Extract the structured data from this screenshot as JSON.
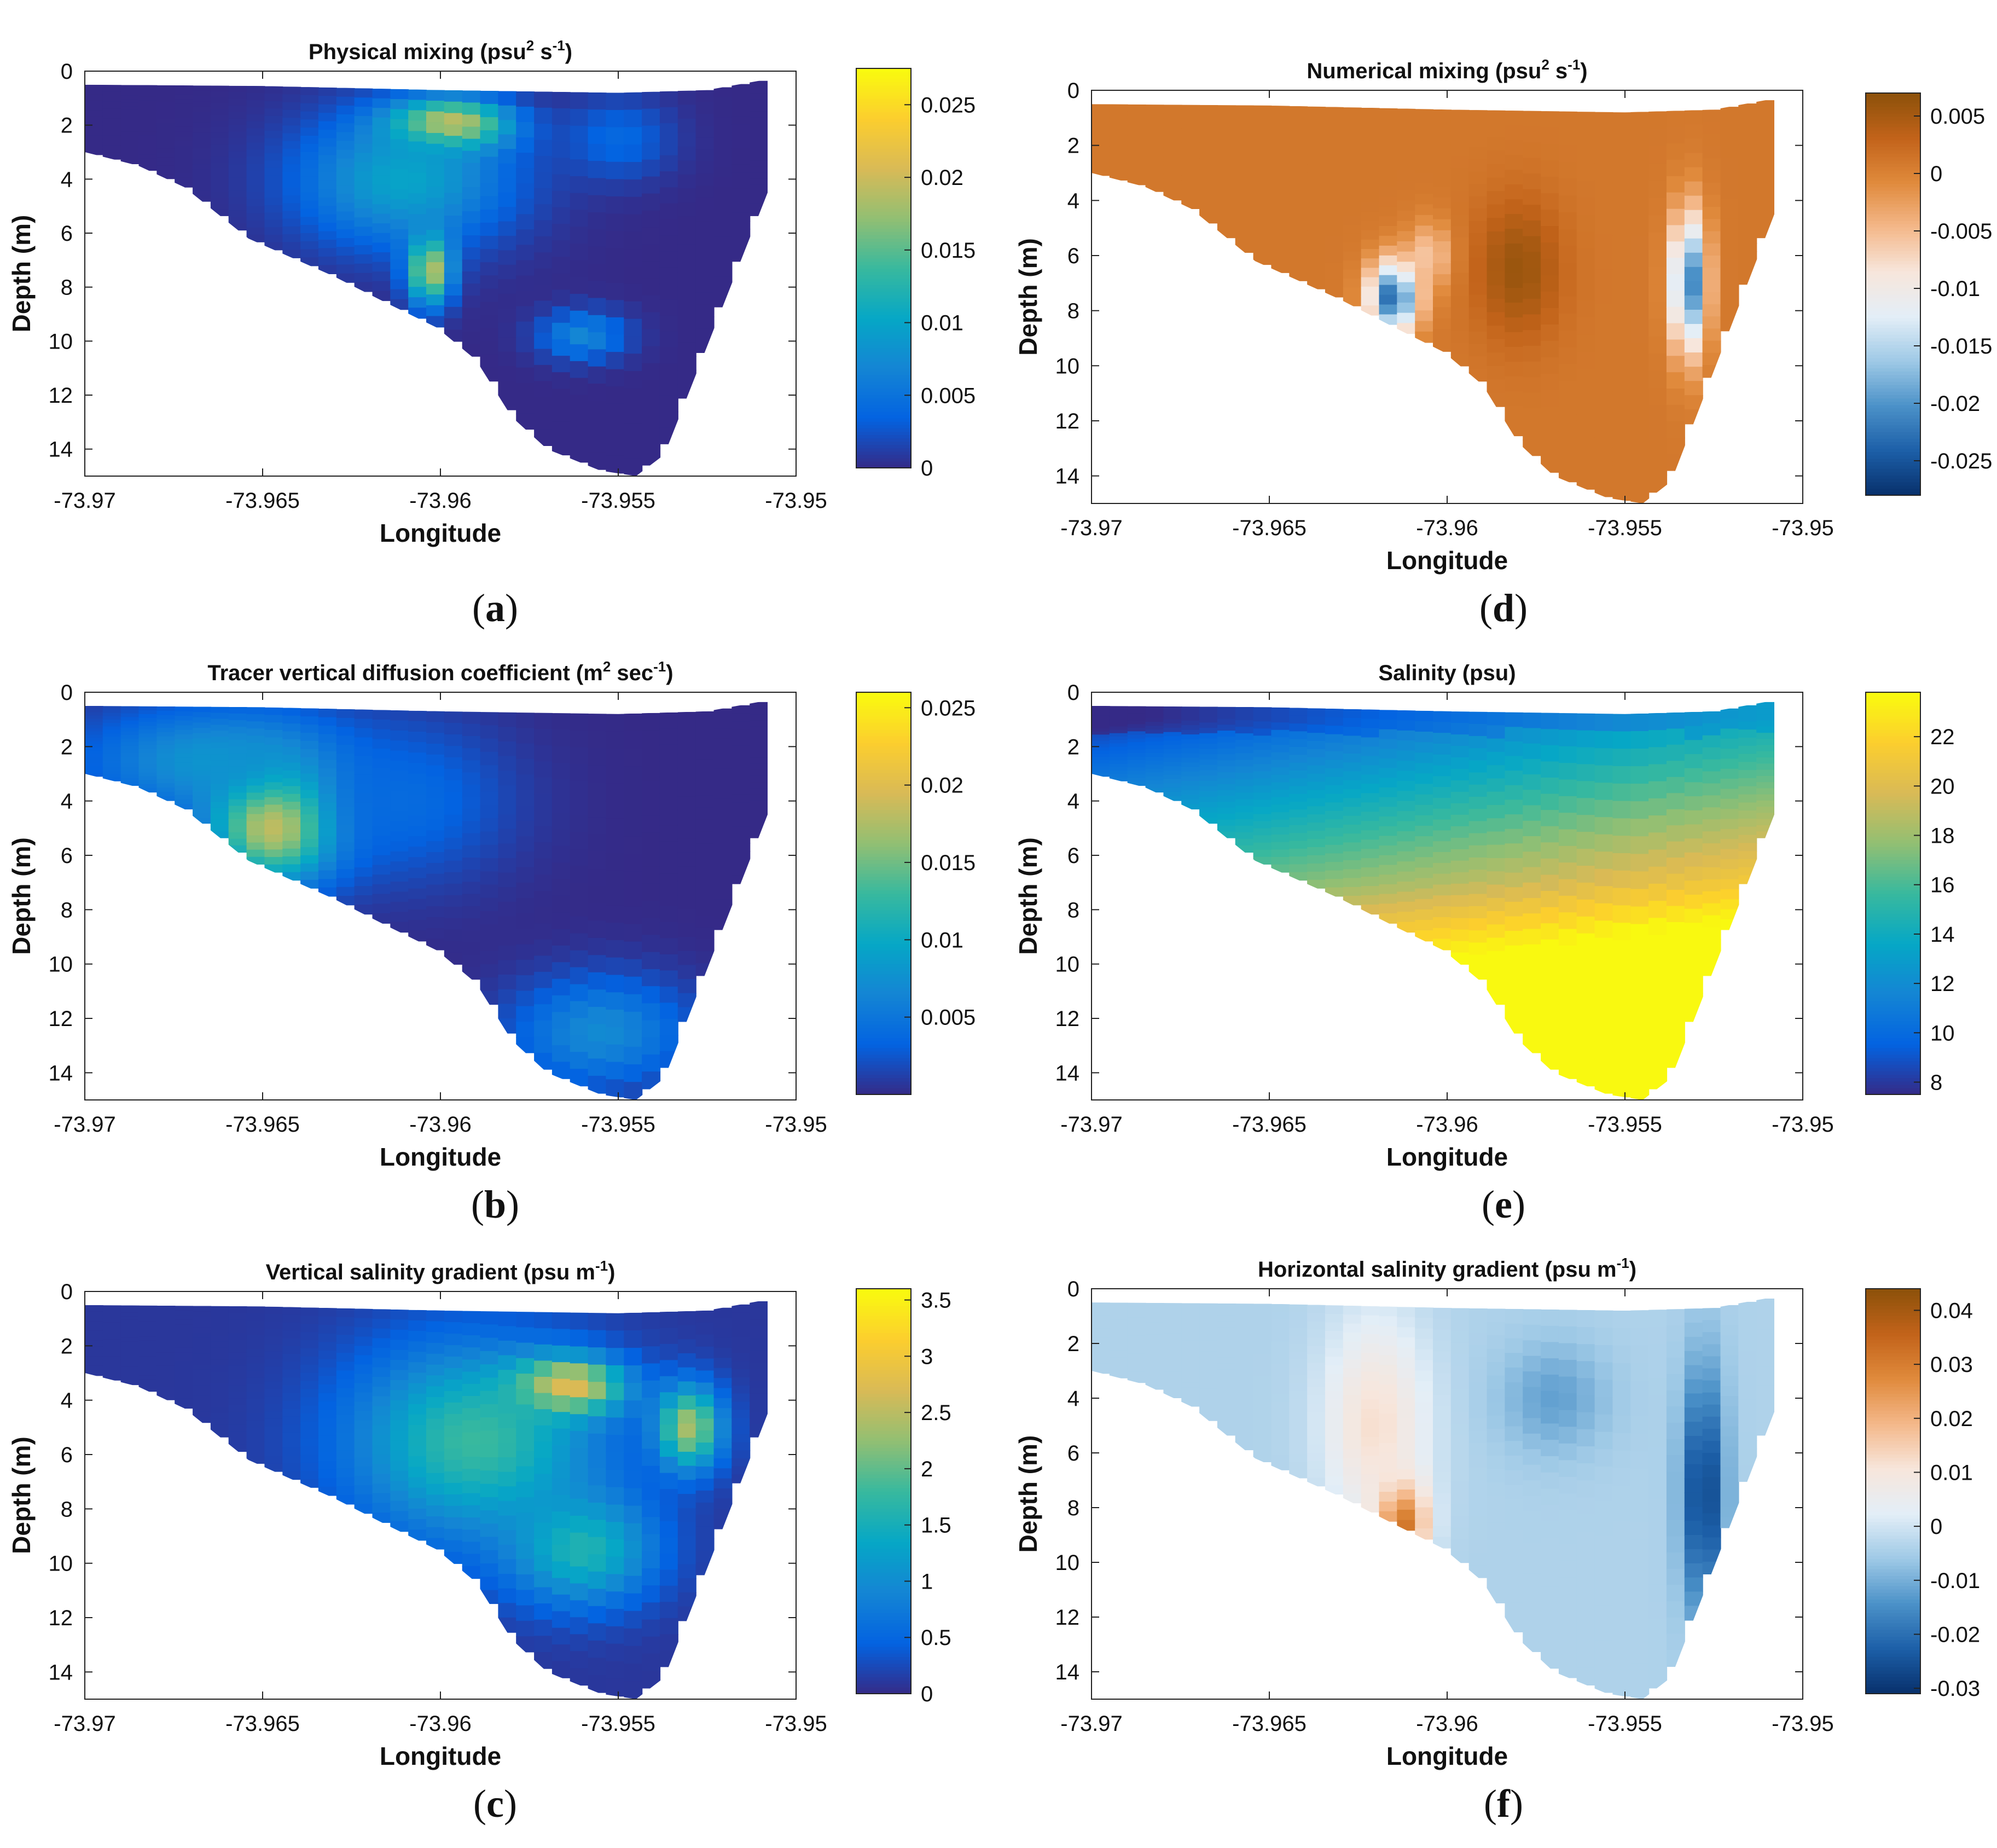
{
  "chart_data": [
    {
      "panel": "a",
      "type": "heatmap",
      "title": "Physical mixing (psu",
      "title_sup1": "2",
      "title_mid": " s",
      "title_sup2": "-1",
      "title_end": ")",
      "xlabel": "Longitude",
      "ylabel": "Depth (m)",
      "xlim": [
        -73.97,
        -73.95
      ],
      "ylim": [
        15,
        0
      ],
      "xticks": [
        "-73.97",
        "-73.965",
        "-73.96",
        "-73.955",
        "-73.95"
      ],
      "xtick_values": [
        -73.97,
        -73.965,
        -73.96,
        -73.955,
        -73.95
      ],
      "yticks": [
        "0",
        "2",
        "4",
        "6",
        "8",
        "10",
        "12",
        "14"
      ],
      "colorbar_ticks": [
        "0",
        "0.005",
        "0.01",
        "0.015",
        "0.02",
        "0.025"
      ],
      "colorbar_tick_values": [
        0,
        0.005,
        0.01,
        0.015,
        0.02,
        0.025
      ],
      "clim": [
        0,
        0.0275
      ],
      "colormap": "parula",
      "hotspots": [
        {
          "lon": -73.9598,
          "depth": 2.0,
          "value": 0.026,
          "lon_radius": 0.0016,
          "depth_radius": 0.9
        },
        {
          "lon": -73.9603,
          "depth": 7.3,
          "value": 0.021,
          "lon_radius": 0.0006,
          "depth_radius": 1.3
        },
        {
          "lon": -73.961,
          "depth": 4.0,
          "value": 0.01,
          "lon_radius": 0.003,
          "depth_radius": 2.5
        },
        {
          "lon": -73.956,
          "depth": 9.8,
          "value": 0.007,
          "lon_radius": 0.0012,
          "depth_radius": 0.9
        },
        {
          "lon": -73.955,
          "depth": 2.5,
          "value": 0.004,
          "lon_radius": 0.0015,
          "depth_radius": 1.5
        }
      ],
      "background": 0.0
    },
    {
      "panel": "b",
      "type": "heatmap",
      "title": "Tracer vertical diffusion coefficient (m",
      "title_sup1": "2",
      "title_mid": " sec",
      "title_sup2": "-1",
      "title_end": ")",
      "xlabel": "Longitude",
      "ylabel": "Depth (m)",
      "xlim": [
        -73.97,
        -73.95
      ],
      "ylim": [
        15,
        0
      ],
      "xticks": [
        "-73.97",
        "-73.965",
        "-73.96",
        "-73.955",
        "-73.95"
      ],
      "xtick_values": [
        -73.97,
        -73.965,
        -73.96,
        -73.955,
        -73.95
      ],
      "yticks": [
        "0",
        "2",
        "4",
        "6",
        "8",
        "10",
        "12",
        "14"
      ],
      "colorbar_ticks": [
        "0.005",
        "0.01",
        "0.015",
        "0.02",
        "0.025"
      ],
      "colorbar_tick_values": [
        0.005,
        0.01,
        0.015,
        0.02,
        0.025
      ],
      "clim": [
        0,
        0.026
      ],
      "colormap": "parula",
      "hotspots": [
        {
          "lon": -73.9645,
          "depth": 4.5,
          "value": 0.026,
          "lon_radius": 0.0018,
          "depth_radius": 2.2
        },
        {
          "lon": -73.9665,
          "depth": 2.5,
          "value": 0.008,
          "lon_radius": 0.0035,
          "depth_radius": 2.0
        },
        {
          "lon": -73.9555,
          "depth": 12.5,
          "value": 0.007,
          "lon_radius": 0.0025,
          "depth_radius": 2.0
        },
        {
          "lon": -73.961,
          "depth": 4.0,
          "value": 0.004,
          "lon_radius": 0.003,
          "depth_radius": 3.0
        }
      ],
      "background": 0.0
    },
    {
      "panel": "c",
      "type": "heatmap",
      "title": "Vertical salinity gradient (psu m",
      "title_sup1": "",
      "title_mid": "",
      "title_sup2": "-1",
      "title_end": ")",
      "xlabel": "Longitude",
      "ylabel": "Depth (m)",
      "xlim": [
        -73.97,
        -73.95
      ],
      "ylim": [
        15,
        0
      ],
      "xticks": [
        "-73.97",
        "-73.965",
        "-73.96",
        "-73.955",
        "-73.95"
      ],
      "xtick_values": [
        -73.97,
        -73.965,
        -73.96,
        -73.955,
        -73.95
      ],
      "yticks": [
        "0",
        "2",
        "4",
        "6",
        "8",
        "10",
        "12",
        "14"
      ],
      "colorbar_ticks": [
        "0",
        "0.5",
        "1",
        "1.5",
        "2",
        "2.5",
        "3",
        "3.5"
      ],
      "colorbar_tick_values": [
        0,
        0.5,
        1,
        1.5,
        2,
        2.5,
        3,
        3.5
      ],
      "clim": [
        0,
        3.6
      ],
      "colormap": "parula",
      "hotspots": [
        {
          "lon": -73.9565,
          "depth": 3.5,
          "value": 3.5,
          "lon_radius": 0.0015,
          "depth_radius": 1.0
        },
        {
          "lon": -73.959,
          "depth": 5.5,
          "value": 1.8,
          "lon_radius": 0.0035,
          "depth_radius": 3.5
        },
        {
          "lon": -73.953,
          "depth": 5.0,
          "value": 2.4,
          "lon_radius": 0.0009,
          "depth_radius": 1.5
        },
        {
          "lon": -73.956,
          "depth": 9.5,
          "value": 1.6,
          "lon_radius": 0.002,
          "depth_radius": 2.0
        }
      ],
      "background": 0.1
    },
    {
      "panel": "d",
      "type": "heatmap",
      "title": "Numerical mixing (psu",
      "title_sup1": "2",
      "title_mid": " s",
      "title_sup2": "-1",
      "title_end": ")",
      "xlabel": "Longitude",
      "ylabel": "Depth (m)",
      "xlim": [
        -73.97,
        -73.95
      ],
      "ylim": [
        15,
        0
      ],
      "xticks": [
        "-73.97",
        "-73.965",
        "-73.96",
        "-73.955",
        "-73.95"
      ],
      "xtick_values": [
        -73.97,
        -73.965,
        -73.96,
        -73.955,
        -73.95
      ],
      "yticks": [
        "0",
        "2",
        "4",
        "6",
        "8",
        "10",
        "12",
        "14"
      ],
      "colorbar_ticks": [
        "-0.025",
        "-0.02",
        "-0.015",
        "-0.01",
        "-0.005",
        "0",
        "0.005"
      ],
      "colorbar_tick_values": [
        -0.025,
        -0.02,
        -0.015,
        -0.01,
        -0.005,
        0,
        0.005
      ],
      "clim": [
        -0.028,
        0.007
      ],
      "colormap": "diverging-brown-blue",
      "hotspots": [
        {
          "lon": -73.9615,
          "depth": 7.5,
          "value": -0.024,
          "lon_radius": 0.0007,
          "depth_radius": 1.3
        },
        {
          "lon": -73.9532,
          "depth": 7.0,
          "value": -0.022,
          "lon_radius": 0.0005,
          "depth_radius": 2.5
        },
        {
          "lon": -73.958,
          "depth": 6.5,
          "value": 0.006,
          "lon_radius": 0.0012,
          "depth_radius": 2.5
        },
        {
          "lon": -73.9605,
          "depth": 6.0,
          "value": -0.006,
          "lon_radius": 0.0006,
          "depth_radius": 1.2
        }
      ],
      "background": 0.001
    },
    {
      "panel": "e",
      "type": "heatmap",
      "title": "Salinity (psu)",
      "title_sup1": "",
      "title_mid": "",
      "title_sup2": "",
      "title_end": "",
      "xlabel": "Longitude",
      "ylabel": "Depth (m)",
      "xlim": [
        -73.97,
        -73.95
      ],
      "ylim": [
        15,
        0
      ],
      "xticks": [
        "-73.97",
        "-73.965",
        "-73.96",
        "-73.955",
        "-73.95"
      ],
      "xtick_values": [
        -73.97,
        -73.965,
        -73.96,
        -73.955,
        -73.95
      ],
      "yticks": [
        "0",
        "2",
        "4",
        "6",
        "8",
        "10",
        "12",
        "14"
      ],
      "colorbar_ticks": [
        "8",
        "10",
        "12",
        "14",
        "16",
        "18",
        "20",
        "22"
      ],
      "colorbar_tick_values": [
        8,
        10,
        12,
        14,
        16,
        18,
        20,
        22
      ],
      "clim": [
        7.5,
        23.8
      ],
      "colormap": "parula",
      "profile": "salinity",
      "hotspots": [],
      "background": 10
    },
    {
      "panel": "f",
      "type": "heatmap",
      "title": "Horizontal salinity gradient (psu m",
      "title_sup1": "",
      "title_mid": "",
      "title_sup2": "-1",
      "title_end": ")",
      "xlabel": "Longitude",
      "ylabel": "Depth (m)",
      "xlim": [
        -73.97,
        -73.95
      ],
      "ylim": [
        15,
        0
      ],
      "xticks": [
        "-73.97",
        "-73.965",
        "-73.96",
        "-73.955",
        "-73.95"
      ],
      "xtick_values": [
        -73.97,
        -73.965,
        -73.96,
        -73.955,
        -73.95
      ],
      "yticks": [
        "0",
        "2",
        "4",
        "6",
        "8",
        "10",
        "12",
        "14"
      ],
      "colorbar_ticks": [
        "-0.03",
        "-0.02",
        "-0.01",
        "0",
        "0.01",
        "0.02",
        "0.03",
        "0.04"
      ],
      "colorbar_tick_values": [
        -0.03,
        -0.02,
        -0.01,
        0,
        0.01,
        0.02,
        0.03,
        0.04
      ],
      "clim": [
        -0.031,
        0.044
      ],
      "colormap": "diverging-brown-blue",
      "hotspots": [
        {
          "lon": -73.9613,
          "depth": 8.5,
          "value": 0.042,
          "lon_radius": 0.0007,
          "depth_radius": 1.5
        },
        {
          "lon": -73.962,
          "depth": 5.0,
          "value": 0.012,
          "lon_radius": 0.0015,
          "depth_radius": 4.0
        },
        {
          "lon": -73.9528,
          "depth": 7.5,
          "value": -0.028,
          "lon_radius": 0.0006,
          "depth_radius": 4.5
        },
        {
          "lon": -73.957,
          "depth": 4.0,
          "value": -0.012,
          "lon_radius": 0.0015,
          "depth_radius": 2.0
        }
      ],
      "background": -0.004
    }
  ],
  "bathymetry": {
    "surface": [
      [
        -73.97,
        0.5
      ],
      [
        -73.965,
        0.55
      ],
      [
        -73.96,
        0.7
      ],
      [
        -73.955,
        0.8
      ],
      [
        -73.9525,
        0.7
      ],
      [
        -73.9508,
        0.3
      ]
    ],
    "bottom": [
      [
        -73.97,
        3.0
      ],
      [
        -73.9685,
        3.5
      ],
      [
        -73.9672,
        4.3
      ],
      [
        -73.9654,
        6.2
      ],
      [
        -73.963,
        7.6
      ],
      [
        -73.9615,
        8.6
      ],
      [
        -73.9601,
        9.5
      ],
      [
        -73.959,
        10.7
      ],
      [
        -73.958,
        12.8
      ],
      [
        -73.957,
        14.0
      ],
      [
        -73.9555,
        14.8
      ],
      [
        -73.9545,
        15.0
      ],
      [
        -73.9537,
        14.2
      ],
      [
        -73.9508,
        4.5
      ]
    ]
  },
  "panel_labels": [
    "(a)",
    "(b)",
    "(c)",
    "(d)",
    "(e)",
    "(f)"
  ],
  "colors": {
    "parula": [
      "#352a87",
      "#0363e1",
      "#1485d4",
      "#06a7c6",
      "#38b99e",
      "#92bf73",
      "#d9ba56",
      "#fcce2e",
      "#f9fb0e"
    ],
    "diverging": [
      "#8c510a",
      "#c2631a",
      "#e08a3c",
      "#f4b88a",
      "#f7e6dc",
      "#e3eef7",
      "#9ec9e6",
      "#4b91c8",
      "#1c5fa8",
      "#08306b"
    ]
  }
}
